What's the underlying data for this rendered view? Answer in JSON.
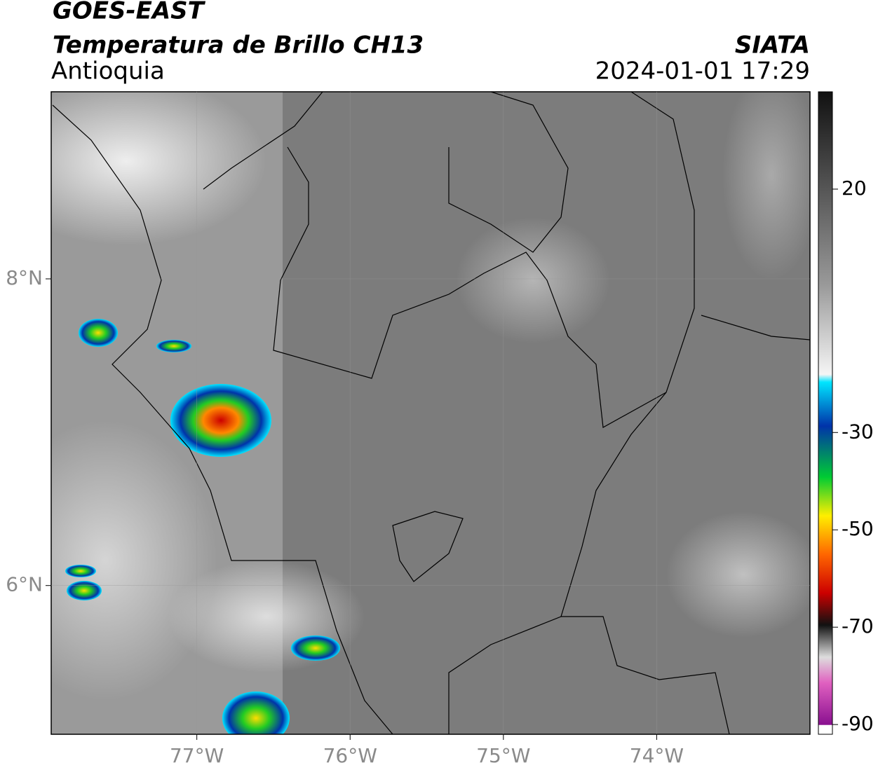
{
  "header": {
    "title": "GOES-EAST",
    "subtitle": "Temperatura de Brillo CH13",
    "region": "Antioquia",
    "source": "SIATA",
    "datetime": "2024-01-01 17:29"
  },
  "map": {
    "xlim": [
      -77.95,
      -73.0
    ],
    "ylim": [
      5.03,
      9.22
    ],
    "xticks": [
      {
        "value": -77,
        "label": "77°W"
      },
      {
        "value": -76,
        "label": "76°W"
      },
      {
        "value": -75,
        "label": "75°W"
      },
      {
        "value": -74,
        "label": "74°W"
      }
    ],
    "yticks": [
      {
        "value": 8,
        "label": "8°N"
      },
      {
        "value": 6,
        "label": "6°N"
      }
    ],
    "grid": true
  },
  "colorbar": {
    "clim": [
      -92,
      40
    ],
    "ticks": [
      20,
      -30,
      -50,
      -70,
      -90
    ]
  }
}
